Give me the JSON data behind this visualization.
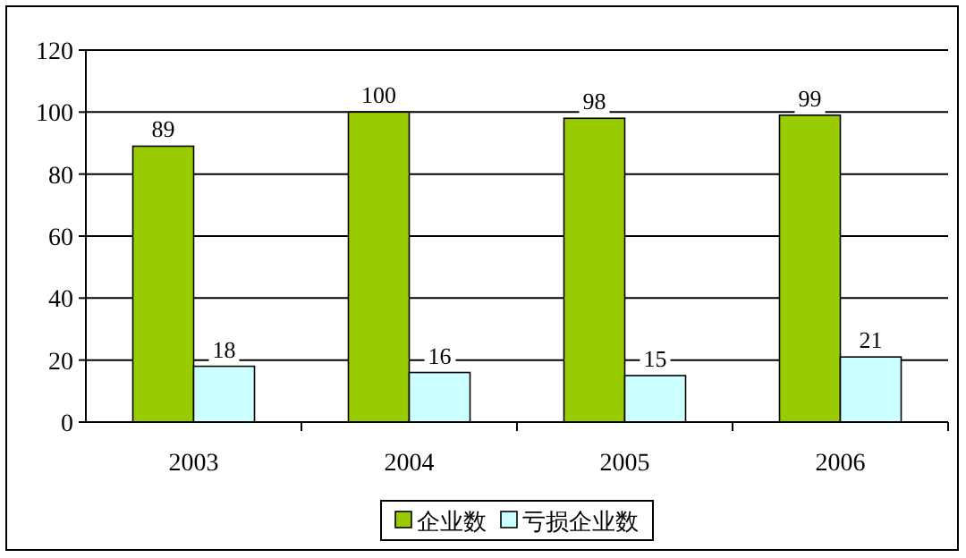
{
  "chart_data": {
    "type": "bar",
    "categories": [
      "2003",
      "2004",
      "2005",
      "2006"
    ],
    "series": [
      {
        "name": "企业数",
        "color": "#99cc00",
        "values": [
          89,
          100,
          98,
          99
        ]
      },
      {
        "name": "亏损企业数",
        "color": "#ccffff",
        "values": [
          18,
          16,
          15,
          21
        ]
      }
    ],
    "ylim": [
      0,
      120
    ],
    "yticks": [
      0,
      20,
      40,
      60,
      80,
      100,
      120
    ],
    "grid": "y",
    "legend": "bottom",
    "data_labels": true
  }
}
